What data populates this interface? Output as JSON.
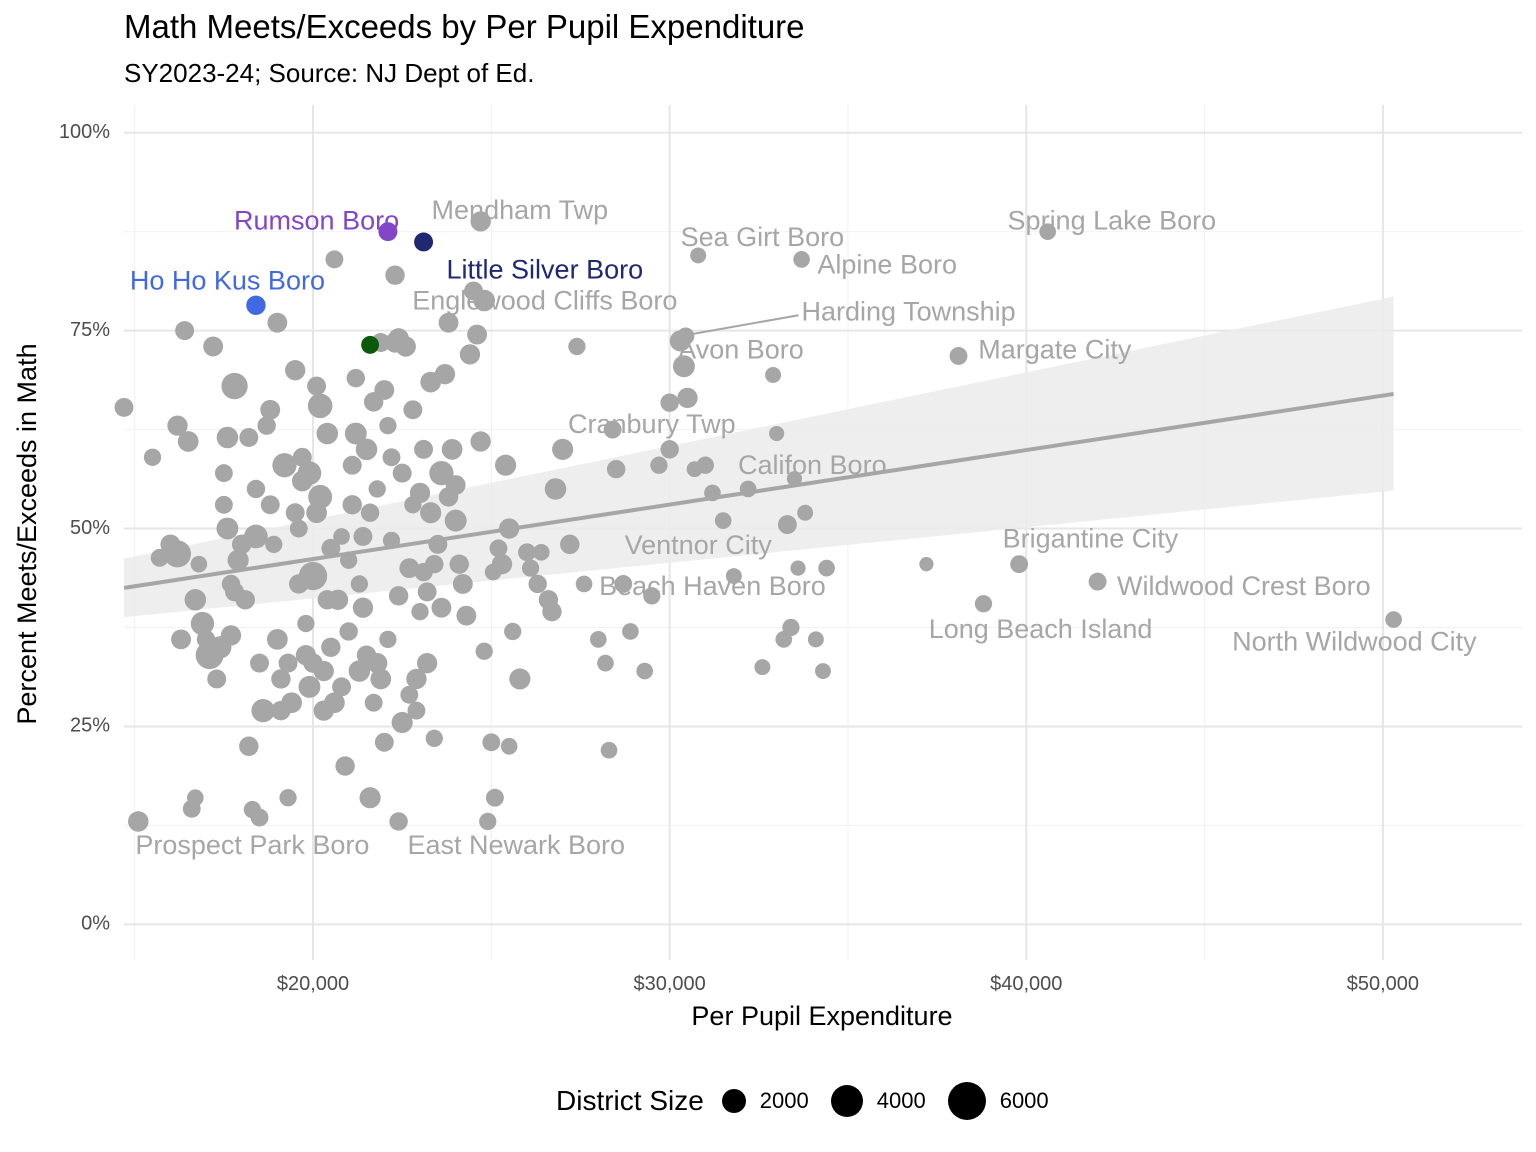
{
  "chart_data": {
    "type": "scatter",
    "title": "Math Meets/Exceeds by Per Pupil Expenditure",
    "subtitle": "SY2023-24; Source: NJ Dept of Ed.",
    "xlabel": "Per Pupil Expenditure",
    "ylabel": "Percent Meets/Exceeds in Math",
    "xlim": [
      14700,
      53900
    ],
    "ylim": [
      -0.045,
      1.035
    ],
    "x_ticks": [
      20000,
      30000,
      40000,
      50000
    ],
    "x_tick_labels": [
      "$20,000",
      "$30,000",
      "$40,000",
      "$50,000"
    ],
    "y_ticks": [
      0,
      0.25,
      0.5,
      0.75,
      1.0
    ],
    "y_tick_labels": [
      "0%",
      "25%",
      "50%",
      "75%",
      "100%"
    ],
    "grid": true,
    "legend": {
      "title": "District Size",
      "position": "bottom",
      "entries": [
        2000,
        4000,
        6000
      ]
    },
    "colors": {
      "default": "#a6a6a6",
      "label": "#a6a6a6",
      "trend": "#a6a6a6",
      "band": "#ebebeb",
      "rumson": "#8246c8",
      "little_silver": "#1f2870",
      "ho_ho_kus": "#4169e1",
      "green": "#0b5a0b"
    },
    "trend": {
      "x": [
        14700,
        50300
      ],
      "y": [
        0.425,
        0.67
      ],
      "ci_lower": [
        0.388,
        0.548
      ],
      "ci_upper": [
        0.462,
        0.793
      ]
    },
    "highlighted": [
      {
        "name": "Rumson Boro",
        "x": 22100,
        "y": 0.875,
        "size": 900,
        "color": "#8246c8"
      },
      {
        "name": "Little Silver Boro",
        "x": 23100,
        "y": 0.862,
        "size": 900,
        "color": "#1f2870"
      },
      {
        "name": "Ho Ho Kus Boro",
        "x": 18400,
        "y": 0.782,
        "size": 1000,
        "color": "#4169e1"
      },
      {
        "name": "",
        "x": 21600,
        "y": 0.732,
        "size": 700,
        "color": "#0b5a0b"
      }
    ],
    "labeled": [
      {
        "name": "Mendham Twp",
        "x": 24700,
        "y": 0.888,
        "size": 1200
      },
      {
        "name": "Sea Girt Boro",
        "x": 30800,
        "y": 0.845,
        "size": 400
      },
      {
        "name": "Spring Lake Boro",
        "x": 40600,
        "y": 0.875,
        "size": 500
      },
      {
        "name": "Alpine Boro",
        "x": 33700,
        "y": 0.84,
        "size": 500
      },
      {
        "name": "Englewood Cliffs Boro",
        "x": 24800,
        "y": 0.788,
        "size": 1500
      },
      {
        "name": "Harding Township",
        "x": 30450,
        "y": 0.743,
        "size": 600
      },
      {
        "name": "Avon Boro",
        "x": 32900,
        "y": 0.694,
        "size": 400
      },
      {
        "name": "Margate City",
        "x": 38100,
        "y": 0.718,
        "size": 700
      },
      {
        "name": "Cranbury Twp",
        "x": 30000,
        "y": 0.659,
        "size": 800
      },
      {
        "name": "Califon Boro",
        "x": 33500,
        "y": 0.563,
        "size": 300
      },
      {
        "name": "Ventnor City",
        "x": 33300,
        "y": 0.505,
        "size": 900
      },
      {
        "name": "Brigantine City",
        "x": 39800,
        "y": 0.455,
        "size": 700
      },
      {
        "name": "Beach Haven Boro",
        "x": 37200,
        "y": 0.455,
        "size": 200
      },
      {
        "name": "Wildwood Crest Boro",
        "x": 42000,
        "y": 0.433,
        "size": 700
      },
      {
        "name": "Long Beach Island",
        "x": 38800,
        "y": 0.405,
        "size": 600
      },
      {
        "name": "North Wildwood City",
        "x": 50300,
        "y": 0.385,
        "size": 500
      },
      {
        "name": "Prospect Park Boro",
        "x": 15100,
        "y": 0.13,
        "size": 1200
      },
      {
        "name": "East Newark Boro",
        "x": 22400,
        "y": 0.13,
        "size": 800
      }
    ],
    "label_text": [
      {
        "name": "Mendham Twp",
        "x": 25800,
        "y": 0.9
      },
      {
        "name": "Sea Girt Boro",
        "x": 32600,
        "y": 0.866
      },
      {
        "name": "Spring Lake Boro",
        "x": 42400,
        "y": 0.887
      },
      {
        "name": "Rumson Boro",
        "x": 20100,
        "y": 0.887
      },
      {
        "name": "Little Silver Boro",
        "x": 26500,
        "y": 0.825
      },
      {
        "name": "Ho Ho Kus Boro",
        "x": 17600,
        "y": 0.811
      },
      {
        "name": "Alpine Boro",
        "x": 36100,
        "y": 0.831
      },
      {
        "name": "Englewood Cliffs Boro",
        "x": 26500,
        "y": 0.786
      },
      {
        "name": "Harding Township",
        "x": 36700,
        "y": 0.772
      },
      {
        "name": "Avon Boro",
        "x": 32000,
        "y": 0.724
      },
      {
        "name": "Margate City",
        "x": 40800,
        "y": 0.724
      },
      {
        "name": "Cranbury Twp",
        "x": 29500,
        "y": 0.63
      },
      {
        "name": "Califon Boro",
        "x": 34000,
        "y": 0.578
      },
      {
        "name": "Ventnor City",
        "x": 30800,
        "y": 0.477
      },
      {
        "name": "Brigantine City",
        "x": 41800,
        "y": 0.485
      },
      {
        "name": "Beach Haven Boro",
        "x": 31200,
        "y": 0.425
      },
      {
        "name": "Wildwood Crest Boro",
        "x": 46100,
        "y": 0.425
      },
      {
        "name": "Long Beach Island",
        "x": 40400,
        "y": 0.371
      },
      {
        "name": "North Wildwood City",
        "x": 49200,
        "y": 0.355
      },
      {
        "name": "Prospect Park Boro",
        "x": 18300,
        "y": 0.098
      },
      {
        "name": "East Newark Boro",
        "x": 25700,
        "y": 0.098
      }
    ],
    "points": [
      [
        14700,
        0.653,
        900
      ],
      [
        15100,
        0.13,
        1200
      ],
      [
        15500,
        0.59,
        600
      ],
      [
        15700,
        0.463,
        700
      ],
      [
        16000,
        0.48,
        1100
      ],
      [
        16200,
        0.468,
        3300
      ],
      [
        16200,
        0.63,
        1200
      ],
      [
        16300,
        0.36,
        1100
      ],
      [
        16400,
        0.75,
        900
      ],
      [
        16500,
        0.61,
        1300
      ],
      [
        16600,
        0.146,
        700
      ],
      [
        16700,
        0.16,
        500
      ],
      [
        16700,
        0.41,
        1500
      ],
      [
        16800,
        0.455,
        500
      ],
      [
        16900,
        0.38,
        2000
      ],
      [
        17000,
        0.36,
        800
      ],
      [
        17100,
        0.34,
        3600
      ],
      [
        17200,
        0.73,
        1100
      ],
      [
        17300,
        0.31,
        900
      ],
      [
        17400,
        0.35,
        1700
      ],
      [
        17500,
        0.57,
        700
      ],
      [
        17500,
        0.53,
        700
      ],
      [
        17600,
        0.5,
        1600
      ],
      [
        17600,
        0.615,
        1500
      ],
      [
        17700,
        0.365,
        1200
      ],
      [
        17700,
        0.43,
        800
      ],
      [
        17800,
        0.42,
        900
      ],
      [
        17800,
        0.68,
        3000
      ],
      [
        17900,
        0.46,
        1400
      ],
      [
        18000,
        0.48,
        1000
      ],
      [
        18100,
        0.41,
        1000
      ],
      [
        18200,
        0.615,
        900
      ],
      [
        18200,
        0.225,
        1000
      ],
      [
        18300,
        0.145,
        600
      ],
      [
        18400,
        0.55,
        800
      ],
      [
        18400,
        0.49,
        2100
      ],
      [
        18500,
        0.33,
        900
      ],
      [
        18500,
        0.135,
        700
      ],
      [
        18600,
        0.27,
        2000
      ],
      [
        18700,
        0.63,
        800
      ],
      [
        18800,
        0.53,
        900
      ],
      [
        18800,
        0.65,
        1100
      ],
      [
        18900,
        0.48,
        600
      ],
      [
        19000,
        0.36,
        1300
      ],
      [
        19000,
        0.76,
        1100
      ],
      [
        19100,
        0.31,
        1000
      ],
      [
        19100,
        0.27,
        1000
      ],
      [
        19200,
        0.58,
        2300
      ],
      [
        19300,
        0.33,
        900
      ],
      [
        19300,
        0.16,
        600
      ],
      [
        19400,
        0.28,
        1300
      ],
      [
        19500,
        0.52,
        900
      ],
      [
        19500,
        0.7,
        1200
      ],
      [
        19600,
        0.43,
        1000
      ],
      [
        19600,
        0.5,
        700
      ],
      [
        19700,
        0.56,
        1300
      ],
      [
        19700,
        0.59,
        900
      ],
      [
        19800,
        0.34,
        1200
      ],
      [
        19800,
        0.38,
        600
      ],
      [
        19900,
        0.3,
        1600
      ],
      [
        19900,
        0.57,
        2100
      ],
      [
        20000,
        0.44,
        3800
      ],
      [
        20000,
        0.33,
        1000
      ],
      [
        20100,
        0.52,
        1300
      ],
      [
        20100,
        0.68,
        900
      ],
      [
        20200,
        0.54,
        2200
      ],
      [
        20200,
        0.655,
        2400
      ],
      [
        20300,
        0.27,
        1200
      ],
      [
        20300,
        0.32,
        1200
      ],
      [
        20400,
        0.62,
        1500
      ],
      [
        20400,
        0.41,
        1000
      ],
      [
        20500,
        0.475,
        900
      ],
      [
        20500,
        0.35,
        1000
      ],
      [
        20600,
        0.28,
        1300
      ],
      [
        20600,
        0.84,
        700
      ],
      [
        20700,
        0.41,
        1200
      ],
      [
        20800,
        0.49,
        500
      ],
      [
        20800,
        0.3,
        900
      ],
      [
        20900,
        0.2,
        1000
      ],
      [
        21000,
        0.46,
        600
      ],
      [
        21000,
        0.37,
        800
      ],
      [
        21100,
        0.58,
        900
      ],
      [
        21100,
        0.53,
        1000
      ],
      [
        21200,
        0.69,
        800
      ],
      [
        21200,
        0.62,
        1600
      ],
      [
        21300,
        0.32,
        1500
      ],
      [
        21300,
        0.43,
        600
      ],
      [
        21400,
        0.4,
        1200
      ],
      [
        21400,
        0.49,
        900
      ],
      [
        21500,
        0.34,
        1000
      ],
      [
        21500,
        0.6,
        1500
      ],
      [
        21600,
        0.16,
        1400
      ],
      [
        21600,
        0.52,
        800
      ],
      [
        21700,
        0.28,
        700
      ],
      [
        21700,
        0.66,
        1000
      ],
      [
        21800,
        0.55,
        600
      ],
      [
        21800,
        0.33,
        1200
      ],
      [
        21900,
        0.735,
        900
      ],
      [
        21900,
        0.31,
        1300
      ],
      [
        22000,
        0.675,
        1100
      ],
      [
        22000,
        0.23,
        900
      ],
      [
        22100,
        0.63,
        600
      ],
      [
        22100,
        0.36,
        600
      ],
      [
        22200,
        0.485,
        600
      ],
      [
        22200,
        0.59,
        700
      ],
      [
        22300,
        0.82,
        1000
      ],
      [
        22300,
        0.735,
        1200
      ],
      [
        22400,
        0.415,
        1000
      ],
      [
        22400,
        0.74,
        1300
      ],
      [
        22500,
        0.57,
        900
      ],
      [
        22500,
        0.255,
        1400
      ],
      [
        22600,
        0.73,
        1200
      ],
      [
        22700,
        0.45,
        1100
      ],
      [
        22700,
        0.29,
        700
      ],
      [
        22800,
        0.53,
        600
      ],
      [
        22800,
        0.65,
        900
      ],
      [
        22900,
        0.31,
        1200
      ],
      [
        22900,
        0.27,
        700
      ],
      [
        23000,
        0.545,
        1200
      ],
      [
        23000,
        0.395,
        600
      ],
      [
        23100,
        0.6,
        900
      ],
      [
        23100,
        0.445,
        800
      ],
      [
        23200,
        0.33,
        1200
      ],
      [
        23200,
        0.42,
        900
      ],
      [
        23300,
        0.685,
        1300
      ],
      [
        23300,
        0.52,
        1400
      ],
      [
        23400,
        0.235,
        600
      ],
      [
        23400,
        0.455,
        800
      ],
      [
        23500,
        0.48,
        900
      ],
      [
        23600,
        0.57,
        2300
      ],
      [
        23600,
        0.4,
        1100
      ],
      [
        23700,
        0.695,
        1200
      ],
      [
        23800,
        0.76,
        1100
      ],
      [
        23800,
        0.54,
        1000
      ],
      [
        23900,
        0.6,
        1300
      ],
      [
        24000,
        0.51,
        1600
      ],
      [
        24000,
        0.555,
        1100
      ],
      [
        24100,
        0.455,
        1000
      ],
      [
        24200,
        0.43,
        1100
      ],
      [
        24300,
        0.39,
        1100
      ],
      [
        24400,
        0.72,
        1200
      ],
      [
        24500,
        0.8,
        900
      ],
      [
        24600,
        0.745,
        1100
      ],
      [
        24700,
        0.61,
        1200
      ],
      [
        24800,
        0.345,
        600
      ],
      [
        24900,
        0.13,
        600
      ],
      [
        25000,
        0.23,
        700
      ],
      [
        25100,
        0.16,
        700
      ],
      [
        25200,
        0.475,
        700
      ],
      [
        25300,
        0.455,
        1200
      ],
      [
        25400,
        0.58,
        1400
      ],
      [
        25500,
        0.5,
        1200
      ],
      [
        25600,
        0.37,
        600
      ],
      [
        25800,
        0.31,
        1400
      ],
      [
        26000,
        0.47,
        700
      ],
      [
        26100,
        0.45,
        600
      ],
      [
        26300,
        0.43,
        800
      ],
      [
        26400,
        0.47,
        500
      ],
      [
        26600,
        0.41,
        1000
      ],
      [
        26700,
        0.395,
        1000
      ],
      [
        26800,
        0.55,
        1500
      ],
      [
        27000,
        0.6,
        1400
      ],
      [
        27200,
        0.48,
        1000
      ],
      [
        27400,
        0.73,
        600
      ],
      [
        27600,
        0.43,
        500
      ],
      [
        28000,
        0.36,
        500
      ],
      [
        28200,
        0.33,
        500
      ],
      [
        28300,
        0.22,
        500
      ],
      [
        28400,
        0.625,
        700
      ],
      [
        28500,
        0.575,
        800
      ],
      [
        28700,
        0.43,
        700
      ],
      [
        28900,
        0.37,
        500
      ],
      [
        29300,
        0.32,
        500
      ],
      [
        29500,
        0.415,
        600
      ],
      [
        29700,
        0.58,
        600
      ],
      [
        30000,
        0.6,
        800
      ],
      [
        30300,
        0.737,
        1400
      ],
      [
        30400,
        0.705,
        1600
      ],
      [
        30500,
        0.665,
        1200
      ],
      [
        30700,
        0.575,
        400
      ],
      [
        31000,
        0.58,
        600
      ],
      [
        31200,
        0.545,
        500
      ],
      [
        31500,
        0.51,
        500
      ],
      [
        31800,
        0.44,
        400
      ],
      [
        32200,
        0.55,
        500
      ],
      [
        32600,
        0.325,
        400
      ],
      [
        33000,
        0.62,
        300
      ],
      [
        33200,
        0.36,
        500
      ],
      [
        33400,
        0.375,
        600
      ],
      [
        33600,
        0.45,
        300
      ],
      [
        33800,
        0.52,
        400
      ],
      [
        34100,
        0.36,
        400
      ],
      [
        34300,
        0.32,
        400
      ],
      [
        34400,
        0.45,
        500
      ],
      [
        25050,
        0.445,
        500
      ],
      [
        25500,
        0.225,
        500
      ]
    ]
  }
}
